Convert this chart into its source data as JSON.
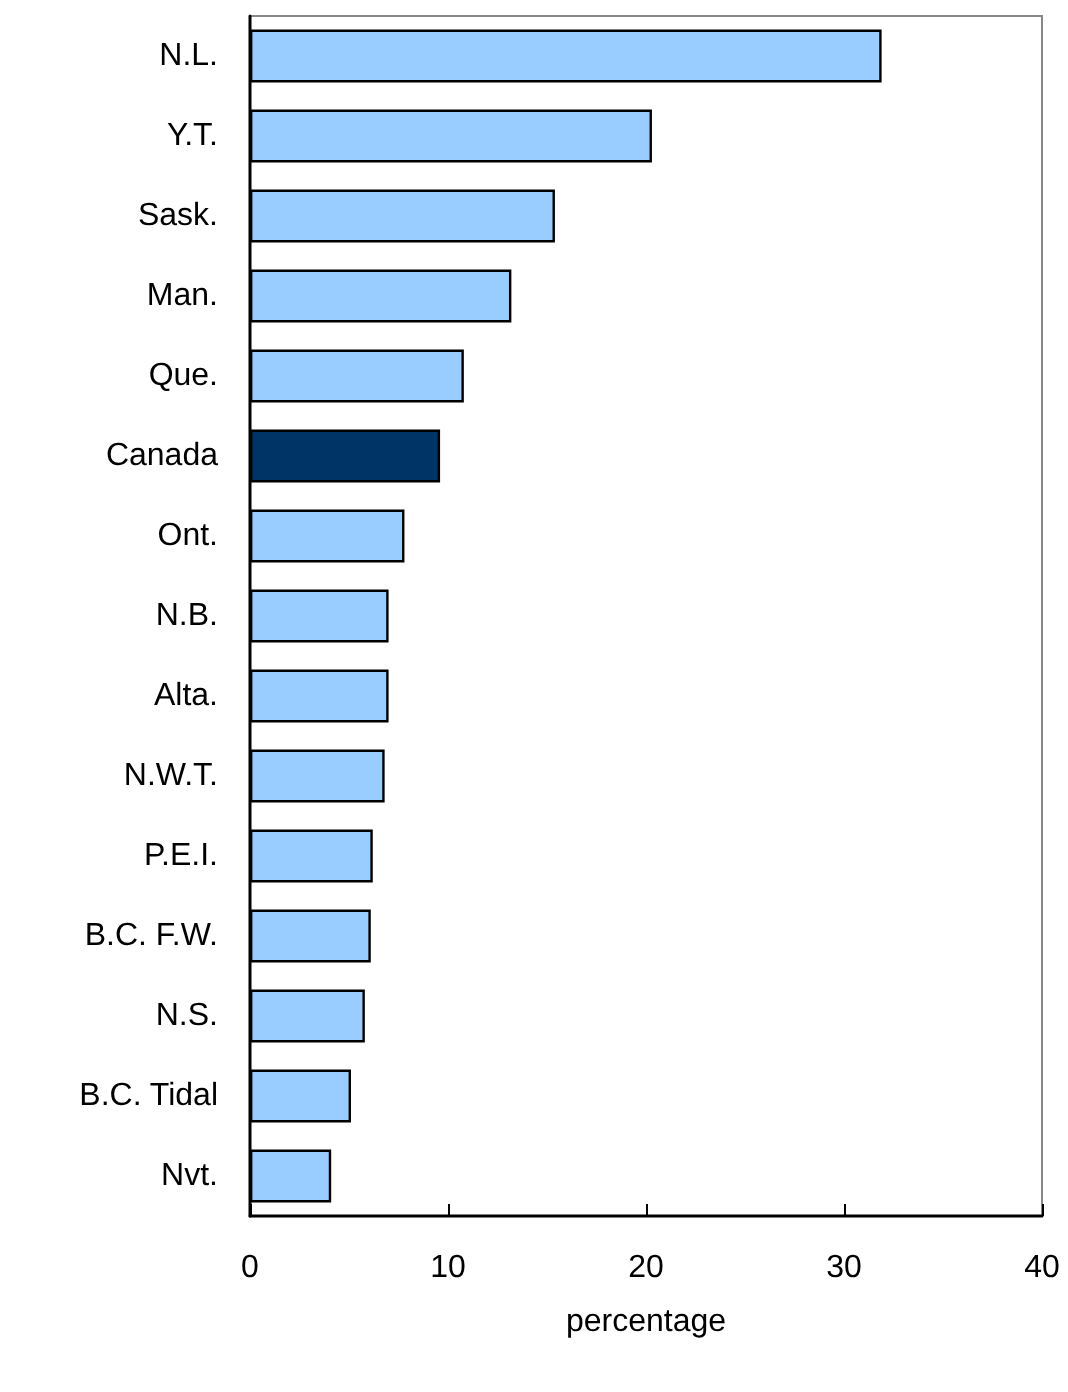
{
  "chart_data": {
    "type": "bar",
    "orientation": "horizontal",
    "xlabel": "percentage",
    "categories": [
      "N.L.",
      "Y.T.",
      "Sask.",
      "Man.",
      "Que.",
      "Canada",
      "Ont.",
      "N.B.",
      "Alta.",
      "N.W.T.",
      "P.E.I.",
      "B.C. F.W.",
      "N.S.",
      "B.C. Tidal",
      "Nvt."
    ],
    "values": [
      31.9,
      20.3,
      15.4,
      13.2,
      10.8,
      9.6,
      7.8,
      7.0,
      7.0,
      6.8,
      6.2,
      6.1,
      5.8,
      5.1,
      4.1
    ],
    "colors": [
      "#99ccff",
      "#99ccff",
      "#99ccff",
      "#99ccff",
      "#99ccff",
      "#003366",
      "#99ccff",
      "#99ccff",
      "#99ccff",
      "#99ccff",
      "#99ccff",
      "#99ccff",
      "#99ccff",
      "#99ccff",
      "#99ccff"
    ],
    "xlim": [
      0,
      40
    ],
    "xticks": [
      0,
      10,
      20,
      30,
      40
    ],
    "grid": false
  }
}
